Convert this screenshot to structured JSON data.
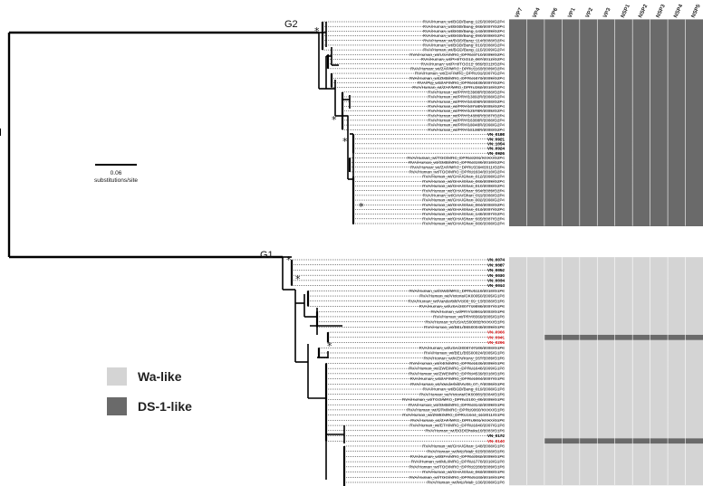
{
  "clades": {
    "g2": "G2",
    "g1": "G1"
  },
  "support_symbol": "*",
  "scale_bar": {
    "value": "0.06",
    "unit": "substitutions/site"
  },
  "genes": [
    "VP7",
    "VP4",
    "VP6",
    "VP1",
    "VP2",
    "VP3",
    "NSP1",
    "NSP2",
    "NSP3",
    "NSP4",
    "NSP5"
  ],
  "colors": {
    "wa": "#d4d4d4",
    "ds1": "#6a6a6a",
    "highlight": "#e0191b"
  },
  "legend": {
    "wa": "Wa-like",
    "ds1": "DS-1-like"
  },
  "g2_strains": [
    "RVA/Human_wt/BGD/Bang_125/2009/G2P4",
    "RVA/Human_wt/BGD/Bang_068/2007/G2P4",
    "RVA/Human_wt/BGD/Bang_143/2009/G2P4",
    "RVA/Human_wt/BGD/Bang_090/2008/G2P4",
    "RVA/Human_wt/BGD/Bang_114/2008/G2P4",
    "RVA/Human_wt/BGD/Bang_016/2008/G2P4",
    "RVA/Human_wt/BGD/Bang_115/2009/G2P4",
    "RVA/Human_wt/USA/MRC_DPRU3710/2009/G2P4",
    "RVA/Human_wt/PHI/TGO12_007/2012/G2P4",
    "RVA/Human_wt/PHI/TGO12_009/2012/G2P4",
    "RVA/Human_wt/ZAF/MRC_DPRU1163/2009/G2P4",
    "RVA/Human_wt/ZAF/MRC_DPRU91/2007/G2P4",
    "RVA/Human_wt/ZMB/MRC_DPRU1873/2009/G2P4",
    "RVA/Pig_wt/ZAF/MRC_DPRU1838/2007/G2P4",
    "RVA/Human_wt/ZAF/MRC_DPRU262/2010/G2P4",
    "RVA/Human_wt/PRY/13968R/2008/G2P4",
    "RVA/Human_wt/PRY/13892R/2008/G2P4",
    "RVA/Human_wt/PRY/18406R/2008/G2P4",
    "RVA/Human_wt/PRY/10718R/2005/G2P4",
    "RVA/Human_wt/PRY/12578R/2005/G2P4",
    "RVA/Human_wt/PRY/14886R/2007/G2P4",
    "RVA/Human_wt/PRY/16368R/2008/G2P4",
    "RVA/Human_wt/PRY/18048R/2008/G2P4",
    "RVA/Human_wt/PRY/18138R/2008/G2P4",
    "VN_0188",
    "VN_0921",
    "VN_1054",
    "VN_0924",
    "VN_0926",
    "RVA/Human_wt/TGO/MRC_DPRU2201/XXXX/G2P4",
    "RVA/Human_wt/GMB/MRC_DPRU3199/2010/G2P4",
    "RVA/Human_wt/ZAF/MRC_DPRU3394/2011/G2P4",
    "RVA/Human_wt/TGO/MRC_DPRU1834/2010/G2P4",
    "RVA/Human_wt/GHA/Ghan_012/2008/G2P4",
    "RVA/Human_wt/GHA/Ghan_066/2009/G2P4",
    "RVA/Human_wt/GHA/Ghan_010/2008/G2P4",
    "RVA/Human_wt/GHA/Ghan_064/2009/G2P4",
    "RVA/Human_wt/GHA/Ghan_011/2008/G2P4",
    "RVA/Human_wt/GHA/Ghan_002/2008/G2P4",
    "RVA/Human_wt/GHA/Ghan_004/2008/G2P4",
    "RVA/Human_wt/GHA/Ghan_013/2007/G2P4",
    "RVA/Human_wt/GHA/Ghan_148/2007/G2P4",
    "RVA/Human_wt/GHA/Ghan_085/2007/G2P4",
    "RVA/Human_wt/GHA/Ghan_086/2008/G2P4"
  ],
  "g1_strains": [
    "VN_0074",
    "VN_0087",
    "VN_0052",
    "VN_0030",
    "VN_0034",
    "VN_0013",
    "RVA/Human_wt/SWZ/MRC_DPRU5119/2010/G1P8",
    "RVA/Human_wt/Victoria/CK00050/2005/G1P8",
    "RVA/Human_wt/Vanderbilt/VU08_09_13/2008/G1P8",
    "RVA/Human_wt/USA/2007719898/2007/G1P8",
    "RVA/Human_wt/PRY/13961/2003/G1P8",
    "RVA/Human_wt/PRY/8369/2005/G1P8",
    "RVA/Human_tc/USA/L500002/XXXX/G1P8",
    "RVA/Human_wt/BEL/B5500048/2009/G1P8",
    "VN_0966",
    "VN_0941",
    "VN_0296",
    "RVA/Human_wt/USA/2008747106/2008/G1P8",
    "RVA/Human_wt/BEL/B5500024/2005/G1P8",
    "RVA/Human_wt/KEN/Keny_267/2009/G1P8",
    "RVA/Human_wt/KEN/MRC_DPRU1536/2009/G1P8",
    "RVA/Human_wt/ZWE/MRC_DPRU1648/2009/G1P8",
    "RVA/Human_wt/ZWE/MRC_DPRU4539/2010/G1P8",
    "RVA/Human_wt/ZAF/MRC_DPRU1004/2007/G1P8",
    "RVA/Human_wt/Vanderbilt/VU06_07_7/2006/G1P8",
    "RVA/Human_wt/BGD/Bang_019/2008/G1P8",
    "RVA/Human_wt/Victoria/CK00001/2004/G1P8",
    "RVA/Human_wt/TGO/MRC_DPRU2100_09/2009/G1P8",
    "RVA/Human_wt/GMB/MRC_DPRU3142/2009/G1P8",
    "RVA/Human_wt/GTM/MRC_DPRU9060/XXXX/G1P8",
    "RVA/Human_wt/ZWE/MRC_DPRU1644_11/2011/G1P8",
    "RVA/Human_wt/ZAF/MRC_DPRU901/XXXX/G1P8",
    "RVA/Human_wt/ETH/MRC_DPRU1840/2007/G1P8",
    "RVA/Human_wt/BGD/Dhaka16/2003/G1P8",
    "VN_0172",
    "VN_0140",
    "RVA/Human_wt/GHA/Ghan_148/2008/G1P8",
    "RVA/Human_wt/MLI/Mali_023/2008/G1P8",
    "RVA/Human_wt/BFA/MRC_DPRU2062/2009/G1P8",
    "RVA/Human_wt/MLI/MRC_DPRU1778/2010/G1P8",
    "RVA/Human_wt/TGO/MRC_DPRU2208/2009/G1P8",
    "RVA/Human_wt/GHA/Ghan_063/2008/G1P8",
    "RVA/Human_wt/TGO/MRC_DPRU5183/2010/G1P8",
    "RVA/Human_wt/MLI/Mali_136/2008/G1P8"
  ],
  "g1_bold": [
    "VN_0074",
    "VN_0087",
    "VN_0052",
    "VN_0030",
    "VN_0034",
    "VN_0013",
    "VN_0172"
  ],
  "g1_red": [
    "VN_0966",
    "VN_0941",
    "VN_0296",
    "VN_0140"
  ],
  "g2_bold": [
    "VN_0188",
    "VN_0921",
    "VN_1054",
    "VN_0924",
    "VN_0926"
  ],
  "g1_reassortants": {
    "VN_0941": [
      "VP6",
      "VP1",
      "VP2",
      "VP3",
      "NSP1",
      "NSP2",
      "NSP3",
      "NSP4",
      "NSP5"
    ],
    "VN_0140": [
      "VP6",
      "VP1",
      "VP2",
      "VP3",
      "NSP1",
      "NSP2",
      "NSP3",
      "NSP4",
      "NSP5"
    ]
  }
}
